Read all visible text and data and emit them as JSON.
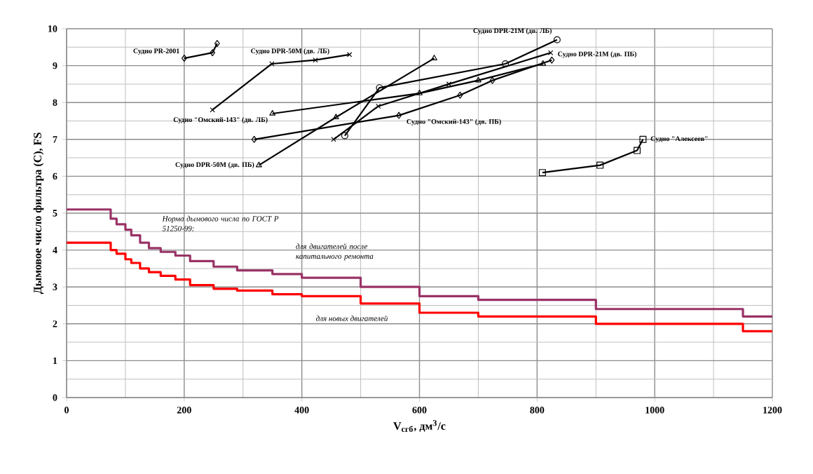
{
  "chart_data": {
    "type": "line",
    "xlabel": "V$_{сгб}$, дм$^{3}$/с",
    "ylabel": "Дымовое число фильтра (С), FS",
    "xlim": [
      0,
      1200
    ],
    "ylim": [
      0,
      10
    ],
    "xticks": [
      0,
      200,
      400,
      600,
      800,
      1000,
      1200
    ],
    "yticks": [
      0,
      1,
      2,
      3,
      4,
      5,
      6,
      7,
      8,
      9,
      10
    ],
    "grid": true,
    "annotations": [
      "Норма дымового числа по ГОСТ Р 51250-99:"
    ],
    "series": [
      {
        "name": "для двигателей после капитального ремонта",
        "type": "step",
        "color": "#993366",
        "marker": "none",
        "x": [
          0,
          75,
          85,
          100,
          110,
          125,
          140,
          160,
          185,
          210,
          250,
          290,
          350,
          400,
          500,
          600,
          700,
          900,
          1150,
          1200
        ],
        "values": [
          5.1,
          4.85,
          4.7,
          4.55,
          4.4,
          4.2,
          4.05,
          3.95,
          3.85,
          3.7,
          3.55,
          3.45,
          3.35,
          3.25,
          3.0,
          2.75,
          2.65,
          2.4,
          2.2,
          2.2
        ]
      },
      {
        "name": "для новых двигателей",
        "type": "step",
        "color": "#ff0000",
        "marker": "none",
        "x": [
          0,
          75,
          85,
          100,
          110,
          125,
          140,
          160,
          185,
          210,
          250,
          290,
          350,
          400,
          500,
          600,
          700,
          900,
          1150,
          1200
        ],
        "values": [
          4.2,
          4.0,
          3.9,
          3.75,
          3.65,
          3.5,
          3.4,
          3.3,
          3.2,
          3.05,
          2.95,
          2.9,
          2.8,
          2.75,
          2.55,
          2.3,
          2.2,
          2.0,
          1.8,
          1.8
        ]
      },
      {
        "name": "Судно PR-2001",
        "color": "#000000",
        "marker": "diamond",
        "x": [
          200,
          248,
          256
        ],
        "values": [
          9.2,
          9.35,
          9.6
        ]
      },
      {
        "name": "Судно DPR-50M (дв. ЛБ)",
        "color": "#000000",
        "marker": "cross",
        "x": [
          248,
          349,
          423,
          481
        ],
        "values": [
          7.8,
          9.05,
          9.15,
          9.3
        ]
      },
      {
        "name": "Судно DPR-50M (дв. ПБ)",
        "color": "#000000",
        "marker": "triangle",
        "x": [
          327,
          458,
          625
        ],
        "values": [
          6.3,
          7.6,
          9.2
        ]
      },
      {
        "name": "Судно \"Омский-143\" (дв. ЛБ)",
        "color": "#000000",
        "marker": "triangle",
        "x": [
          350,
          600,
          700,
          810
        ],
        "values": [
          7.7,
          8.25,
          8.6,
          9.05
        ]
      },
      {
        "name": "Судно \"Омский-143\" (дв. ПБ)",
        "color": "#000000",
        "marker": "diamond",
        "x": [
          319,
          565,
          669,
          724,
          825
        ],
        "values": [
          7.0,
          7.65,
          8.2,
          8.6,
          9.15
        ]
      },
      {
        "name": "Судно DPR-21M (дв. ЛБ)",
        "color": "#000000",
        "marker": "circle",
        "x": [
          473,
          532,
          746,
          834
        ],
        "values": [
          7.1,
          8.4,
          9.05,
          9.7
        ]
      },
      {
        "name": "Судно DPR-21M (дв. ПБ)",
        "color": "#000000",
        "marker": "cross",
        "x": [
          454,
          530,
          650,
          823
        ],
        "values": [
          7.0,
          7.9,
          8.5,
          9.35
        ]
      },
      {
        "name": "Судно \"Алексеев\"",
        "color": "#000000",
        "marker": "square",
        "x": [
          809,
          907,
          970,
          980
        ],
        "values": [
          6.1,
          6.3,
          6.7,
          7.0
        ]
      }
    ]
  }
}
